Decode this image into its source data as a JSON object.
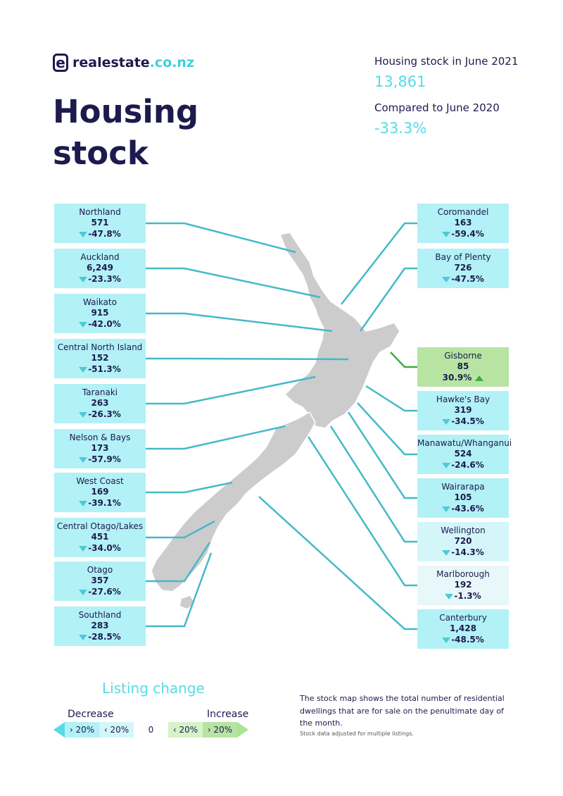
{
  "logo": {
    "mark": "e",
    "name": "realestate",
    "tld": ".co.nz"
  },
  "title": "Housing stock",
  "stats": {
    "stock_label": "Housing stock in June 2021",
    "stock_value": "13,861",
    "compare_label": "Compared to June 2020",
    "compare_value": "-33.3%"
  },
  "colors": {
    "decrease_gt20": "#b2f1f6",
    "decrease_lt20": "#d4f6f9",
    "neutral": "#e8f8fa",
    "increase_lt20": "#d6f3c8",
    "increase_gt20": "#b7e4a3",
    "leader_line": "#44b9c9",
    "leader_line_up": "#3cae3c",
    "map_fill": "#cccccc"
  },
  "regions_left": [
    {
      "name": "Northland",
      "count": "571",
      "change": "-47.8%",
      "dir": "down",
      "class": ""
    },
    {
      "name": "Auckland",
      "count": "6,249",
      "change": "-23.3%",
      "dir": "down",
      "class": ""
    },
    {
      "name": "Waikato",
      "count": "915",
      "change": "-42.0%",
      "dir": "down",
      "class": ""
    },
    {
      "name": "Central North Island",
      "count": "152",
      "change": "-51.3%",
      "dir": "down",
      "class": ""
    },
    {
      "name": "Taranaki",
      "count": "263",
      "change": "-26.3%",
      "dir": "down",
      "class": ""
    },
    {
      "name": "Nelson & Bays",
      "count": "173",
      "change": "-57.9%",
      "dir": "down",
      "class": ""
    },
    {
      "name": "West Coast",
      "count": "169",
      "change": "-39.1%",
      "dir": "down",
      "class": ""
    },
    {
      "name": "Central Otago/Lakes",
      "count": "451",
      "change": "-34.0%",
      "dir": "down",
      "class": ""
    },
    {
      "name": "Otago",
      "count": "357",
      "change": "-27.6%",
      "dir": "down",
      "class": ""
    },
    {
      "name": "Southland",
      "count": "283",
      "change": "-28.5%",
      "dir": "down",
      "class": ""
    }
  ],
  "regions_right": [
    {
      "name": "Coromandel",
      "count": "163",
      "change": "-59.4%",
      "dir": "down",
      "class": ""
    },
    {
      "name": "Bay of Plenty",
      "count": "726",
      "change": "-47.5%",
      "dir": "down",
      "class": ""
    },
    {
      "name": "Gisborne",
      "count": "85",
      "change": "30.9%",
      "dir": "up",
      "class": "up"
    },
    {
      "name": "Hawke's Bay",
      "count": "319",
      "change": "-34.5%",
      "dir": "down",
      "class": ""
    },
    {
      "name": "Manawatu/Whanganui",
      "count": "524",
      "change": "-24.6%",
      "dir": "down",
      "class": ""
    },
    {
      "name": "Wairarapa",
      "count": "105",
      "change": "-43.6%",
      "dir": "down",
      "class": ""
    },
    {
      "name": "Wellington",
      "count": "720",
      "change": "-14.3%",
      "dir": "down",
      "class": "lt20"
    },
    {
      "name": "Marlborough",
      "count": "192",
      "change": "-1.3%",
      "dir": "down",
      "class": "flat"
    },
    {
      "name": "Canterbury",
      "count": "1,428",
      "change": "-48.5%",
      "dir": "down",
      "class": ""
    }
  ],
  "legend": {
    "title": "Listing change",
    "decrease": "Decrease",
    "increase": "Increase",
    "segments": [
      "› 20%",
      "‹ 20%",
      "0",
      "‹ 20%",
      "› 20%"
    ]
  },
  "note": "The stock map shows the total number of residential dwellings that are for sale on the penultimate day of the month.",
  "note_small": "Stock data adjusted for multiple listings."
}
